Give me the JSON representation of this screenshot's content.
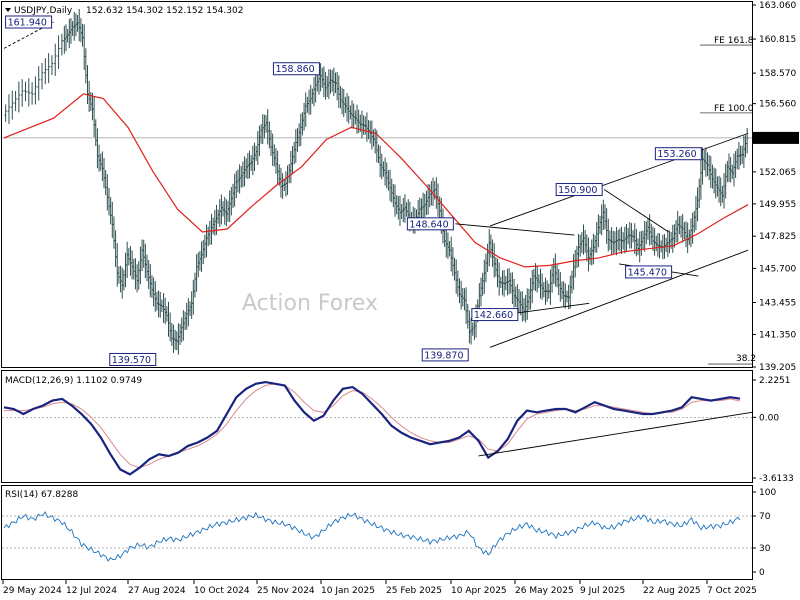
{
  "price_panel": {
    "symbol": "USDJPY,Daily",
    "ohlc": "152.632 154.302 152.152 154.302",
    "watermark": "Action Forex",
    "y_ticks": [
      "163.060",
      "160.815",
      "158.570",
      "156.560",
      "154.302",
      "152.065",
      "149.955",
      "147.825",
      "145.700",
      "143.455",
      "141.350",
      "139.205"
    ],
    "current_price": "154.302",
    "levels": [
      {
        "label": "161.940"
      },
      {
        "label": "139.570"
      },
      {
        "label": "158.860"
      },
      {
        "label": "148.640"
      },
      {
        "label": "139.870"
      },
      {
        "label": "142.660"
      },
      {
        "label": "150.900"
      },
      {
        "label": "145.470"
      },
      {
        "label": "153.260"
      }
    ],
    "fibs": [
      {
        "label": "FE 161.8"
      },
      {
        "label": "FE 100.0"
      },
      {
        "label": "38.2"
      }
    ]
  },
  "macd_panel": {
    "title": "MACD(12,26,9) 1.1102 0.9749",
    "y_ticks": [
      "2.2251",
      "0.00",
      "-3.6133"
    ]
  },
  "rsi_panel": {
    "title": "RSI(14) 67.8288",
    "y_ticks": [
      "100",
      "70",
      "30",
      "0"
    ]
  },
  "x_ticks": [
    "29 May 2024",
    "12 Jul 2024",
    "27 Aug 2024",
    "10 Oct 2024",
    "25 Nov 2024",
    "10 Jan 2025",
    "25 Feb 2025",
    "10 Apr 2025",
    "26 May 2025",
    "9 Jul 2025",
    "22 Aug 2025",
    "7 Oct 2025"
  ],
  "chart_data": [
    {
      "type": "line",
      "title": "USDJPY,Daily",
      "ylim": [
        139.205,
        163.06
      ],
      "grid": false,
      "close_path": [
        {
          "t": 0,
          "c": 155.8
        },
        {
          "t": 2,
          "c": 156.6
        },
        {
          "t": 4,
          "c": 157.4
        },
        {
          "t": 6,
          "c": 157.2
        },
        {
          "t": 8,
          "c": 158.6
        },
        {
          "t": 10,
          "c": 159.2
        },
        {
          "t": 12,
          "c": 160.7
        },
        {
          "t": 13,
          "c": 161.1
        },
        {
          "t": 14,
          "c": 161.6
        },
        {
          "t": 15,
          "c": 161.9
        },
        {
          "t": 16,
          "c": 160.9
        },
        {
          "t": 17,
          "c": 157.2
        },
        {
          "t": 18,
          "c": 156.2
        },
        {
          "t": 19,
          "c": 153.1
        },
        {
          "t": 20,
          "c": 152.3
        },
        {
          "t": 21,
          "c": 150.4
        },
        {
          "t": 22,
          "c": 148.6
        },
        {
          "t": 23,
          "c": 145.4
        },
        {
          "t": 24,
          "c": 144.6
        },
        {
          "t": 25,
          "c": 146.6
        },
        {
          "t": 26,
          "c": 145.8
        },
        {
          "t": 27,
          "c": 144.9
        },
        {
          "t": 28,
          "c": 146.9
        },
        {
          "t": 29,
          "c": 145.5
        },
        {
          "t": 30,
          "c": 144.3
        },
        {
          "t": 31,
          "c": 143.4
        },
        {
          "t": 32,
          "c": 143.2
        },
        {
          "t": 33,
          "c": 142.6
        },
        {
          "t": 34,
          "c": 141.1
        },
        {
          "t": 35,
          "c": 140.9
        },
        {
          "t": 36,
          "c": 141.8
        },
        {
          "t": 37,
          "c": 142.7
        },
        {
          "t": 38,
          "c": 143.4
        },
        {
          "t": 39,
          "c": 145.8
        },
        {
          "t": 40,
          "c": 146.6
        },
        {
          "t": 41,
          "c": 147.7
        },
        {
          "t": 42,
          "c": 148.4
        },
        {
          "t": 43,
          "c": 149.0
        },
        {
          "t": 44,
          "c": 149.7
        },
        {
          "t": 45,
          "c": 149.3
        },
        {
          "t": 46,
          "c": 150.3
        },
        {
          "t": 47,
          "c": 151.4
        },
        {
          "t": 48,
          "c": 151.8
        },
        {
          "t": 49,
          "c": 152.4
        },
        {
          "t": 50,
          "c": 152.7
        },
        {
          "t": 51,
          "c": 153.4
        },
        {
          "t": 52,
          "c": 154.8
        },
        {
          "t": 53,
          "c": 155.3
        },
        {
          "t": 54,
          "c": 153.7
        },
        {
          "t": 55,
          "c": 152.6
        },
        {
          "t": 56,
          "c": 151.1
        },
        {
          "t": 57,
          "c": 151.3
        },
        {
          "t": 58,
          "c": 152.6
        },
        {
          "t": 59,
          "c": 154.0
        },
        {
          "t": 60,
          "c": 155.0
        },
        {
          "t": 61,
          "c": 156.4
        },
        {
          "t": 62,
          "c": 156.9
        },
        {
          "t": 63,
          "c": 157.8
        },
        {
          "t": 64,
          "c": 158.4
        },
        {
          "t": 65,
          "c": 157.6
        },
        {
          "t": 66,
          "c": 158.1
        },
        {
          "t": 67,
          "c": 157.9
        },
        {
          "t": 68,
          "c": 156.8
        },
        {
          "t": 69,
          "c": 156.4
        },
        {
          "t": 70,
          "c": 155.9
        },
        {
          "t": 71,
          "c": 155.6
        },
        {
          "t": 72,
          "c": 155.2
        },
        {
          "t": 73,
          "c": 155.1
        },
        {
          "t": 74,
          "c": 154.6
        },
        {
          "t": 75,
          "c": 154.0
        },
        {
          "t": 76,
          "c": 152.5
        },
        {
          "t": 77,
          "c": 152.0
        },
        {
          "t": 78,
          "c": 151.0
        },
        {
          "t": 79,
          "c": 150.0
        },
        {
          "t": 80,
          "c": 149.4
        },
        {
          "t": 81,
          "c": 149.7
        },
        {
          "t": 82,
          "c": 149.0
        },
        {
          "t": 83,
          "c": 148.8
        },
        {
          "t": 84,
          "c": 149.6
        },
        {
          "t": 85,
          "c": 149.9
        },
        {
          "t": 86,
          "c": 150.6
        },
        {
          "t": 87,
          "c": 150.9
        },
        {
          "t": 88,
          "c": 149.5
        },
        {
          "t": 89,
          "c": 147.5
        },
        {
          "t": 90,
          "c": 146.9
        },
        {
          "t": 91,
          "c": 145.4
        },
        {
          "t": 92,
          "c": 144.0
        },
        {
          "t": 93,
          "c": 143.6
        },
        {
          "t": 94,
          "c": 141.5
        },
        {
          "t": 95,
          "c": 141.9
        },
        {
          "t": 96,
          "c": 143.9
        },
        {
          "t": 97,
          "c": 145.4
        },
        {
          "t": 98,
          "c": 147.4
        },
        {
          "t": 99,
          "c": 146.0
        },
        {
          "t": 100,
          "c": 144.8
        },
        {
          "t": 101,
          "c": 144.7
        },
        {
          "t": 102,
          "c": 144.9
        },
        {
          "t": 103,
          "c": 143.9
        },
        {
          "t": 104,
          "c": 143.5
        },
        {
          "t": 105,
          "c": 142.9
        },
        {
          "t": 106,
          "c": 143.8
        },
        {
          "t": 107,
          "c": 145.2
        },
        {
          "t": 108,
          "c": 144.8
        },
        {
          "t": 109,
          "c": 144.2
        },
        {
          "t": 110,
          "c": 144.2
        },
        {
          "t": 111,
          "c": 145.8
        },
        {
          "t": 112,
          "c": 144.6
        },
        {
          "t": 113,
          "c": 143.9
        },
        {
          "t": 114,
          "c": 143.8
        },
        {
          "t": 115,
          "c": 145.8
        },
        {
          "t": 116,
          "c": 147.1
        },
        {
          "t": 117,
          "c": 147.7
        },
        {
          "t": 118,
          "c": 146.4
        },
        {
          "t": 119,
          "c": 147.1
        },
        {
          "t": 120,
          "c": 148.4
        },
        {
          "t": 121,
          "c": 149.4
        },
        {
          "t": 122,
          "c": 147.6
        },
        {
          "t": 123,
          "c": 147.4
        },
        {
          "t": 124,
          "c": 147.6
        },
        {
          "t": 125,
          "c": 147.5
        },
        {
          "t": 126,
          "c": 147.9
        },
        {
          "t": 127,
          "c": 147.8
        },
        {
          "t": 128,
          "c": 147.0
        },
        {
          "t": 129,
          "c": 147.7
        },
        {
          "t": 130,
          "c": 148.4
        },
        {
          "t": 131,
          "c": 147.5
        },
        {
          "t": 132,
          "c": 147.2
        },
        {
          "t": 133,
          "c": 147.1
        },
        {
          "t": 134,
          "c": 147.4
        },
        {
          "t": 135,
          "c": 147.7
        },
        {
          "t": 136,
          "c": 148.6
        },
        {
          "t": 137,
          "c": 148.3
        },
        {
          "t": 138,
          "c": 147.6
        },
        {
          "t": 139,
          "c": 148.5
        },
        {
          "t": 140,
          "c": 150.2
        },
        {
          "t": 141,
          "c": 152.9
        },
        {
          "t": 142,
          "c": 152.5
        },
        {
          "t": 143,
          "c": 151.6
        },
        {
          "t": 144,
          "c": 151.0
        },
        {
          "t": 145,
          "c": 150.5
        },
        {
          "t": 146,
          "c": 152.4
        },
        {
          "t": 147,
          "c": 152.0
        },
        {
          "t": 148,
          "c": 153.1
        },
        {
          "t": 149,
          "c": 153.2
        },
        {
          "t": 150,
          "c": 154.302
        }
      ],
      "ma_path": [
        {
          "t": 0,
          "c": 154.3
        },
        {
          "t": 10,
          "c": 155.6
        },
        {
          "t": 16,
          "c": 157.2
        },
        {
          "t": 20,
          "c": 156.9
        },
        {
          "t": 25,
          "c": 155.0
        },
        {
          "t": 30,
          "c": 152.1
        },
        {
          "t": 35,
          "c": 149.6
        },
        {
          "t": 40,
          "c": 148.1
        },
        {
          "t": 45,
          "c": 148.3
        },
        {
          "t": 50,
          "c": 149.8
        },
        {
          "t": 55,
          "c": 151.2
        },
        {
          "t": 60,
          "c": 152.4
        },
        {
          "t": 65,
          "c": 154.2
        },
        {
          "t": 70,
          "c": 155.0
        },
        {
          "t": 75,
          "c": 154.6
        },
        {
          "t": 80,
          "c": 153.0
        },
        {
          "t": 85,
          "c": 151.2
        },
        {
          "t": 90,
          "c": 149.3
        },
        {
          "t": 95,
          "c": 147.4
        },
        {
          "t": 100,
          "c": 146.4
        },
        {
          "t": 105,
          "c": 145.8
        },
        {
          "t": 110,
          "c": 145.9
        },
        {
          "t": 115,
          "c": 146.2
        },
        {
          "t": 120,
          "c": 146.4
        },
        {
          "t": 125,
          "c": 146.8
        },
        {
          "t": 130,
          "c": 147.0
        },
        {
          "t": 135,
          "c": 147.2
        },
        {
          "t": 140,
          "c": 148.0
        },
        {
          "t": 145,
          "c": 149.0
        },
        {
          "t": 150,
          "c": 149.9
        }
      ],
      "trendlines": [
        {
          "from": {
            "t": 0,
            "c": 160.2
          },
          "to": {
            "t": 10,
            "c": 161.94
          }
        },
        {
          "from": {
            "t": 98,
            "c": 148.5
          },
          "to": {
            "t": 150,
            "c": 154.6
          }
        },
        {
          "from": {
            "t": 98,
            "c": 140.5
          },
          "to": {
            "t": 150,
            "c": 146.9
          }
        },
        {
          "from": {
            "t": 91,
            "c": 148.64
          },
          "to": {
            "t": 115,
            "c": 147.9
          }
        },
        {
          "from": {
            "t": 102,
            "c": 142.7
          },
          "to": {
            "t": 118,
            "c": 143.4
          }
        },
        {
          "from": {
            "t": 121,
            "c": 150.9
          },
          "to": {
            "t": 134,
            "c": 148.1
          }
        },
        {
          "from": {
            "t": 124,
            "c": 146.0
          },
          "to": {
            "t": 140,
            "c": 145.2
          }
        }
      ],
      "level_points": [
        {
          "value": 161.94,
          "t": 10
        },
        {
          "value": 139.57,
          "t": 31
        },
        {
          "value": 158.86,
          "t": 64
        },
        {
          "value": 148.64,
          "t": 91
        },
        {
          "value": 139.87,
          "t": 94
        },
        {
          "value": 142.66,
          "t": 104
        },
        {
          "value": 150.9,
          "t": 121
        },
        {
          "value": 145.47,
          "t": 135
        },
        {
          "value": 153.26,
          "t": 141
        }
      ],
      "fib_levels": [
        {
          "name": "FE 161.8",
          "value": 160.42
        },
        {
          "name": "FE 100.0",
          "value": 155.95
        },
        {
          "name": "38.2",
          "value": 139.4
        }
      ],
      "current_line": 154.302
    },
    {
      "type": "line",
      "title": "MACD(12,26,9)",
      "ylim": [
        -3.6133,
        2.2251
      ],
      "series": [
        {
          "name": "MACD",
          "values": [
            0.6,
            0.5,
            0.2,
            0.5,
            0.7,
            1.0,
            1.1,
            0.7,
            0.2,
            -0.4,
            -1.2,
            -2.2,
            -3.1,
            -3.4,
            -3.0,
            -2.5,
            -2.2,
            -2.3,
            -2.1,
            -1.7,
            -1.5,
            -1.2,
            -0.8,
            0.2,
            1.2,
            1.7,
            2.0,
            2.1,
            2.0,
            1.9,
            1.0,
            0.3,
            -0.2,
            0.1,
            1.0,
            1.7,
            1.8,
            1.4,
            0.8,
            0.2,
            -0.5,
            -0.9,
            -1.2,
            -1.4,
            -1.6,
            -1.5,
            -1.4,
            -1.2,
            -0.8,
            -1.4,
            -2.4,
            -2.0,
            -1.3,
            -0.2,
            0.4,
            0.3,
            0.4,
            0.5,
            0.5,
            0.3,
            0.6,
            0.9,
            0.7,
            0.5,
            0.4,
            0.3,
            0.2,
            0.2,
            0.3,
            0.4,
            0.6,
            1.2,
            1.1,
            1.0,
            1.1,
            1.2,
            1.11
          ]
        },
        {
          "name": "Signal",
          "values": [
            0.4,
            0.4,
            0.4,
            0.5,
            0.6,
            0.8,
            0.9,
            0.8,
            0.5,
            0.0,
            -0.6,
            -1.4,
            -2.2,
            -2.8,
            -3.0,
            -2.8,
            -2.5,
            -2.3,
            -2.1,
            -1.9,
            -1.7,
            -1.4,
            -1.0,
            -0.4,
            0.4,
            1.1,
            1.6,
            1.9,
            2.0,
            1.9,
            1.5,
            0.9,
            0.4,
            0.3,
            0.7,
            1.3,
            1.6,
            1.5,
            1.1,
            0.6,
            0.0,
            -0.5,
            -0.9,
            -1.2,
            -1.4,
            -1.5,
            -1.5,
            -1.3,
            -1.1,
            -1.3,
            -1.9,
            -2.0,
            -1.6,
            -0.8,
            -0.1,
            0.2,
            0.3,
            0.4,
            0.5,
            0.4,
            0.5,
            0.7,
            0.7,
            0.6,
            0.5,
            0.4,
            0.3,
            0.2,
            0.3,
            0.3,
            0.5,
            0.9,
            1.0,
            1.0,
            1.0,
            1.1,
            0.97
          ]
        }
      ],
      "trendline": {
        "from_index": 49,
        "from_value": -2.3,
        "to_index": 76,
        "to_value": 0.3
      }
    },
    {
      "type": "line",
      "title": "RSI(14)",
      "ylim": [
        0,
        100
      ],
      "levels": [
        70,
        30
      ],
      "series": [
        {
          "name": "RSI",
          "values": [
            55,
            62,
            70,
            66,
            73,
            68,
            62,
            50,
            35,
            28,
            22,
            15,
            20,
            30,
            34,
            31,
            38,
            42,
            40,
            45,
            50,
            55,
            60,
            62,
            65,
            68,
            71,
            66,
            62,
            60,
            55,
            48,
            43,
            52,
            62,
            68,
            72,
            66,
            60,
            55,
            50,
            46,
            44,
            41,
            38,
            40,
            43,
            45,
            50,
            30,
            22,
            38,
            48,
            55,
            60,
            52,
            50,
            45,
            48,
            52,
            58,
            62,
            55,
            56,
            63,
            66,
            70,
            62,
            64,
            60,
            58,
            66,
            55,
            57,
            58,
            62,
            68
          ]
        }
      ]
    }
  ]
}
